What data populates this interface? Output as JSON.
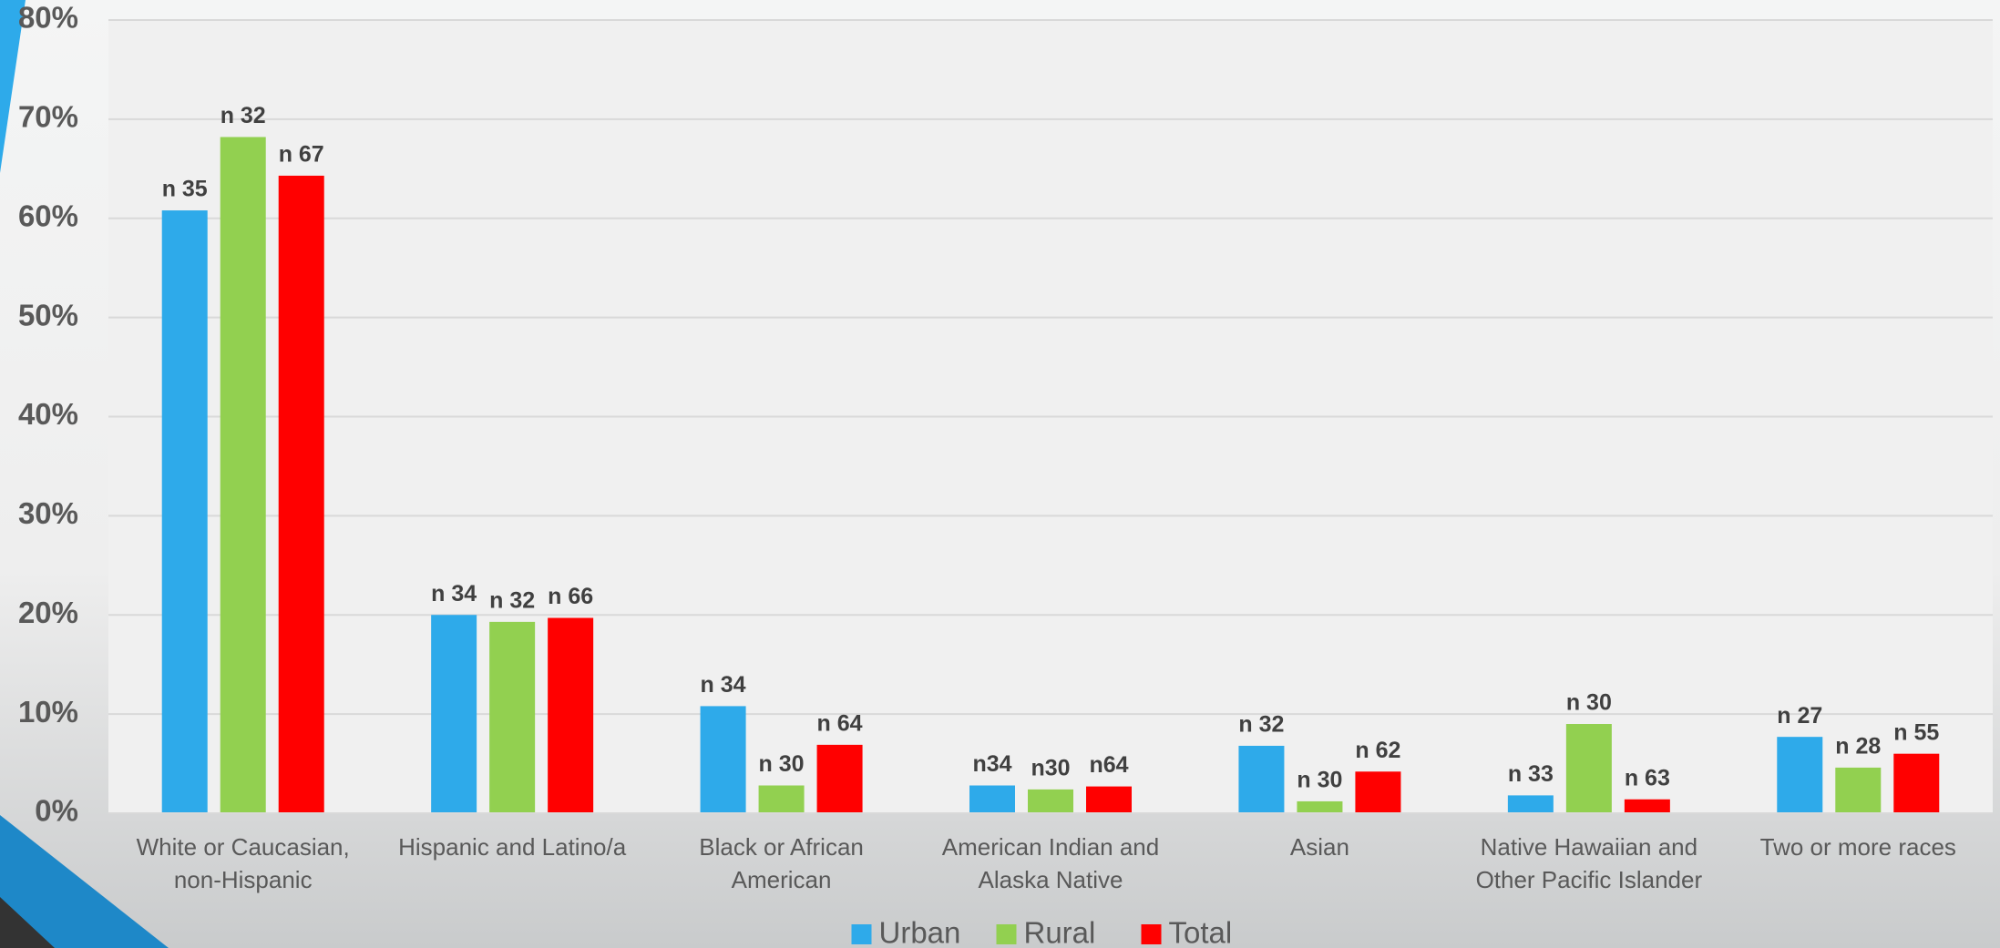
{
  "chart_data": {
    "type": "bar",
    "categories": [
      "White or Caucasian, non-Hispanic",
      "Hispanic and Latino/a",
      "Black or African American",
      "American Indian and Alaska Native",
      "Asian",
      "Native Hawaiian and Other Pacific Islander",
      "Two or more races"
    ],
    "series": [
      {
        "name": "Urban",
        "color": "#2eaaea",
        "values": [
          60.8,
          20,
          10.8,
          2.8,
          6.8,
          1.8,
          7.7
        ],
        "n_labels": [
          "n 35",
          "n 34",
          "n 34",
          "n34",
          "n 32",
          "n 33",
          "n 27"
        ]
      },
      {
        "name": "Rural",
        "color": "#92d050",
        "values": [
          68.2,
          19.3,
          2.8,
          2.4,
          1.2,
          9.0,
          4.6
        ],
        "n_labels": [
          "n 32",
          "n 32",
          "n 30",
          "n30",
          "n 30",
          "n 30",
          "n 28"
        ]
      },
      {
        "name": "Total",
        "color": "#ff0000",
        "values": [
          64.3,
          19.7,
          6.9,
          2.7,
          4.2,
          1.4,
          6.0
        ],
        "n_labels": [
          "n 67",
          "n 66",
          "n 64",
          "n64",
          "n 62",
          "n 63",
          "n 55"
        ]
      }
    ],
    "ylim": [
      0,
      80
    ],
    "yticks": [
      {
        "value": 0,
        "label": "0%"
      },
      {
        "value": 10,
        "label": "10%"
      },
      {
        "value": 20,
        "label": "20%"
      },
      {
        "value": 30,
        "label": "30%"
      },
      {
        "value": 40,
        "label": "40%"
      },
      {
        "value": 50,
        "label": "50%"
      },
      {
        "value": 60,
        "label": "60%"
      },
      {
        "value": 70,
        "label": "70%"
      },
      {
        "value": 80,
        "label": "80%"
      }
    ],
    "grid": true,
    "legend": "bottom"
  }
}
